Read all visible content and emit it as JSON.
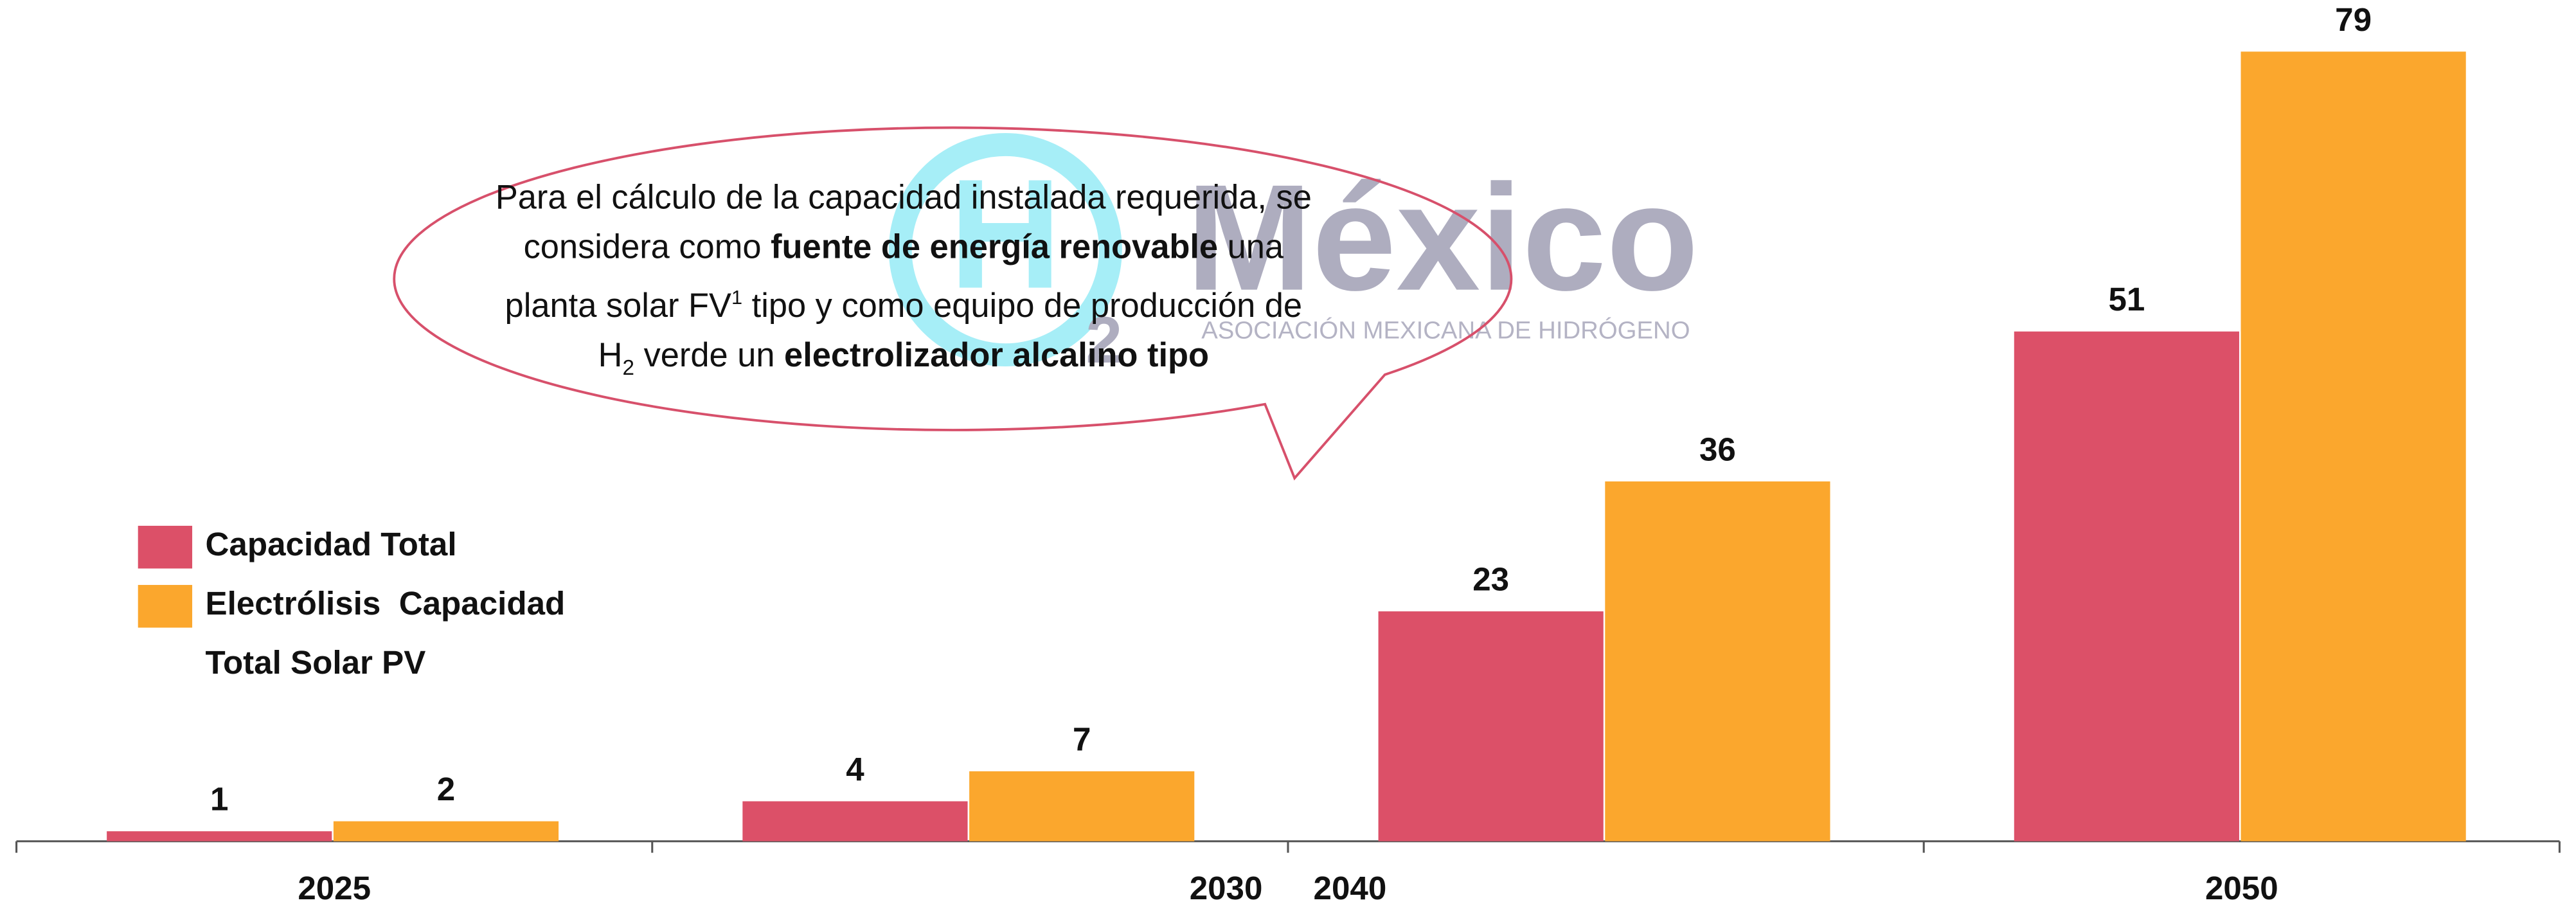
{
  "chart_data": {
    "type": "bar",
    "categories": [
      "2025",
      "2030",
      "2040",
      "2050"
    ],
    "series": [
      {
        "name": "Capacidad Total",
        "color": "#dc5068",
        "values": [
          1,
          4,
          23,
          51
        ]
      },
      {
        "name": "Electrólisis  Capacidad Total Solar PV",
        "color": "#fba72d",
        "values": [
          2,
          7,
          36,
          79
        ]
      }
    ],
    "ylim": [
      0,
      84
    ],
    "legend": "left",
    "annotation": [
      "Para el cálculo de la capacidad instalada requerida, se considera como ",
      "fuente de energía renovable",
      " una planta solar FV",
      "1",
      " tipo y como equipo de producción de H",
      "2",
      " verde un ",
      "electrolizador alcalino tipo"
    ]
  },
  "logo": {
    "mark": "H",
    "sub": "2",
    "name": "México",
    "tagline": "ASOCIACIÓN MEXICANA DE HIDRÓGENO"
  }
}
